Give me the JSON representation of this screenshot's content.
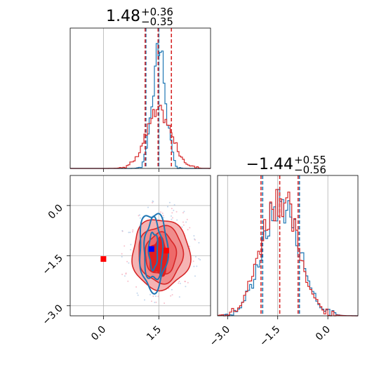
{
  "colors": {
    "blue": "#1f77b4",
    "red": "#d62728",
    "red_fill": "#ee6a6a",
    "red_fill_light": "#f6b3b3",
    "marker_blue": "#0000ff",
    "marker_red": "#ff0000"
  },
  "chart_data": [
    {
      "type": "histogram",
      "panel": "marginal-x",
      "title": {
        "value": "1.48",
        "plus": "+0.36",
        "minus": "−0.35"
      },
      "xlim": [
        -0.9,
        2.9
      ],
      "grid": true,
      "series": [
        {
          "name": "",
          "color": "blue",
          "center": 1.5,
          "sd": 0.18,
          "quantiles": [
            1.15,
            1.5
          ]
        },
        {
          "name": "",
          "color": "red",
          "center": 1.5,
          "sd": 0.35,
          "quantiles": [
            1.13,
            1.48,
            1.84
          ]
        }
      ]
    },
    {
      "type": "histogram",
      "panel": "marginal-y",
      "title": {
        "value": "−1.44",
        "plus": "+0.55",
        "minus": "−0.56"
      },
      "xlim": [
        -3.3,
        0.9
      ],
      "xticks": [
        "−3.0",
        "−1.5",
        "0.0"
      ],
      "grid": true,
      "series": [
        {
          "name": "",
          "color": "blue",
          "center": -1.4,
          "sd": 0.55,
          "quantiles": [
            -1.95,
            -0.85
          ]
        },
        {
          "name": "",
          "color": "red",
          "center": -1.45,
          "sd": 0.55,
          "quantiles": [
            -2.0,
            -1.44,
            -0.89
          ]
        }
      ]
    },
    {
      "type": "contour",
      "panel": "joint",
      "xlim": [
        -0.9,
        2.9
      ],
      "ylim": [
        -3.3,
        0.9
      ],
      "xticks": [
        "0.0",
        "1.5"
      ],
      "yticks": [
        "0.0",
        "−1.5",
        "−3.0"
      ],
      "grid": true,
      "markers": [
        {
          "label": "blue-point",
          "x": 1.3,
          "y": -1.3,
          "color": "marker_blue"
        },
        {
          "label": "red-point-1",
          "x": 0.0,
          "y": -1.6,
          "color": "marker_red"
        },
        {
          "label": "red-point-2",
          "x": 1.7,
          "y": -1.35,
          "color": "marker_red"
        }
      ],
      "red_contours": {
        "center": [
          1.55,
          -1.45
        ],
        "radii": [
          [
            0.78,
            1.05
          ],
          [
            0.6,
            0.85
          ],
          [
            0.42,
            0.62
          ]
        ]
      },
      "blue_contours": {
        "center": [
          1.35,
          -1.35
        ],
        "radii": [
          [
            0.38,
            1.15
          ],
          [
            0.25,
            0.9
          ],
          [
            0.12,
            0.55
          ]
        ]
      }
    }
  ]
}
